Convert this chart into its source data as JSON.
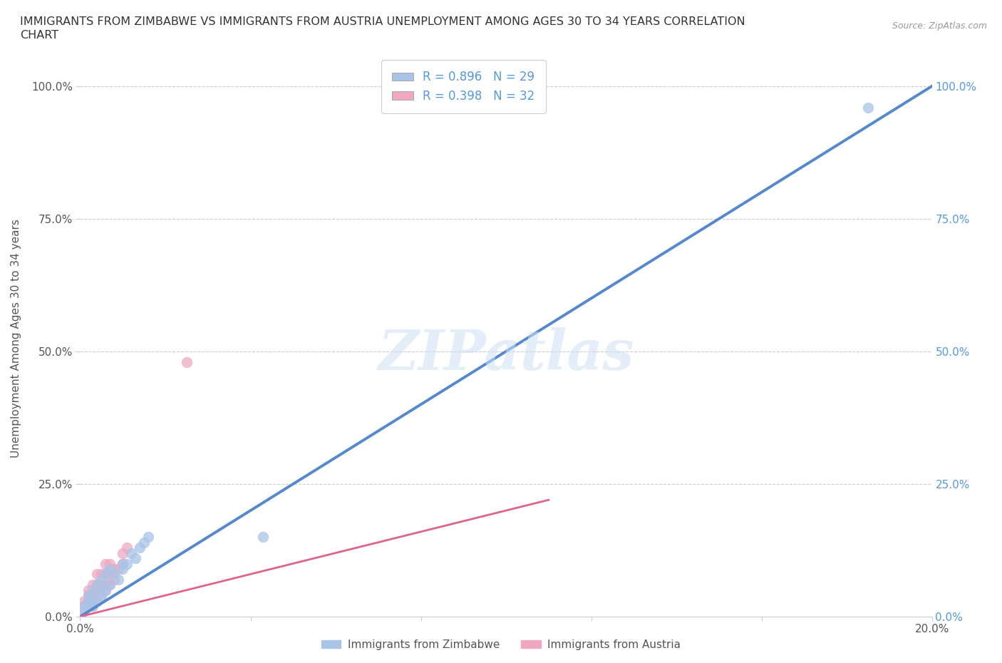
{
  "title": "IMMIGRANTS FROM ZIMBABWE VS IMMIGRANTS FROM AUSTRIA UNEMPLOYMENT AMONG AGES 30 TO 34 YEARS CORRELATION\nCHART",
  "source_text": "Source: ZipAtlas.com",
  "ylabel": "Unemployment Among Ages 30 to 34 years",
  "xlim": [
    0,
    0.2
  ],
  "ylim": [
    0,
    1.05
  ],
  "ytick_labels": [
    "0.0%",
    "25.0%",
    "50.0%",
    "75.0%",
    "100.0%"
  ],
  "ytick_values": [
    0.0,
    0.25,
    0.5,
    0.75,
    1.0
  ],
  "xtick_values": [
    0.0,
    0.04,
    0.08,
    0.12,
    0.16,
    0.2
  ],
  "xtick_labels": [
    "0.0%",
    "",
    "",
    "",
    "",
    "20.0%"
  ],
  "watermark": "ZIPatlas",
  "legend_label1": "Immigrants from Zimbabwe",
  "legend_label2": "Immigrants from Austria",
  "zim_color": "#aac4e8",
  "aus_color": "#f0a8c0",
  "zim_line_color": "#5588cc",
  "aus_line_color": "#dd6688",
  "background_color": "#ffffff",
  "grid_color": "#cccccc",
  "title_color": "#333333",
  "axis_color": "#555555",
  "right_tick_color": "#5599dd",
  "legend_r1": "R = 0.896   N = 29",
  "legend_r2": "R = 0.398   N = 32",
  "marker_size": 110,
  "zim_scatter_x": [
    0.001,
    0.001,
    0.002,
    0.002,
    0.002,
    0.003,
    0.003,
    0.003,
    0.004,
    0.004,
    0.005,
    0.005,
    0.005,
    0.006,
    0.006,
    0.007,
    0.007,
    0.008,
    0.009,
    0.01,
    0.01,
    0.011,
    0.012,
    0.013,
    0.014,
    0.015,
    0.016,
    0.043,
    0.185
  ],
  "zim_scatter_y": [
    0.01,
    0.02,
    0.02,
    0.03,
    0.04,
    0.02,
    0.03,
    0.05,
    0.03,
    0.06,
    0.04,
    0.05,
    0.07,
    0.05,
    0.08,
    0.06,
    0.09,
    0.08,
    0.07,
    0.09,
    0.1,
    0.1,
    0.12,
    0.11,
    0.13,
    0.14,
    0.15,
    0.15,
    0.96
  ],
  "aus_scatter_x": [
    0.001,
    0.001,
    0.001,
    0.002,
    0.002,
    0.002,
    0.002,
    0.003,
    0.003,
    0.003,
    0.003,
    0.004,
    0.004,
    0.004,
    0.004,
    0.005,
    0.005,
    0.005,
    0.006,
    0.006,
    0.006,
    0.006,
    0.007,
    0.007,
    0.007,
    0.008,
    0.008,
    0.009,
    0.01,
    0.01,
    0.011,
    0.025
  ],
  "aus_scatter_y": [
    0.01,
    0.02,
    0.03,
    0.02,
    0.03,
    0.04,
    0.05,
    0.02,
    0.03,
    0.04,
    0.06,
    0.03,
    0.05,
    0.06,
    0.08,
    0.04,
    0.06,
    0.08,
    0.05,
    0.06,
    0.08,
    0.1,
    0.06,
    0.08,
    0.1,
    0.07,
    0.09,
    0.09,
    0.1,
    0.12,
    0.13,
    0.48
  ],
  "zim_line_x": [
    0.0,
    0.2
  ],
  "zim_line_y": [
    0.0,
    1.0
  ],
  "aus_line_x": [
    0.0,
    0.11
  ],
  "aus_line_y": [
    0.0,
    0.22
  ]
}
